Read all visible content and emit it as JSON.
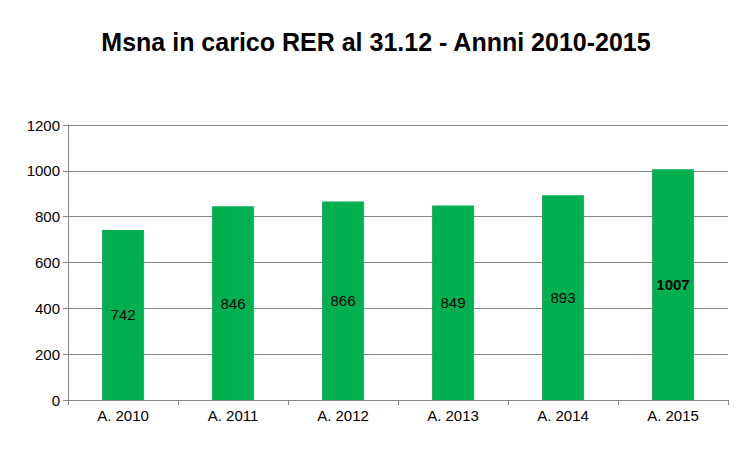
{
  "chart_data": {
    "type": "bar",
    "title": "Msna in carico RER al 31.12 - Annni 2010-2015",
    "categories": [
      "A. 2010",
      "A. 2011",
      "A. 2012",
      "A. 2013",
      "A. 2014",
      "A. 2015"
    ],
    "values": [
      742,
      846,
      866,
      849,
      893,
      1007
    ],
    "color": "#00b050",
    "ylim": [
      0,
      1200
    ],
    "yticks": [
      0,
      200,
      400,
      600,
      800,
      1000,
      1200
    ],
    "grid": true,
    "data_labels": true
  }
}
